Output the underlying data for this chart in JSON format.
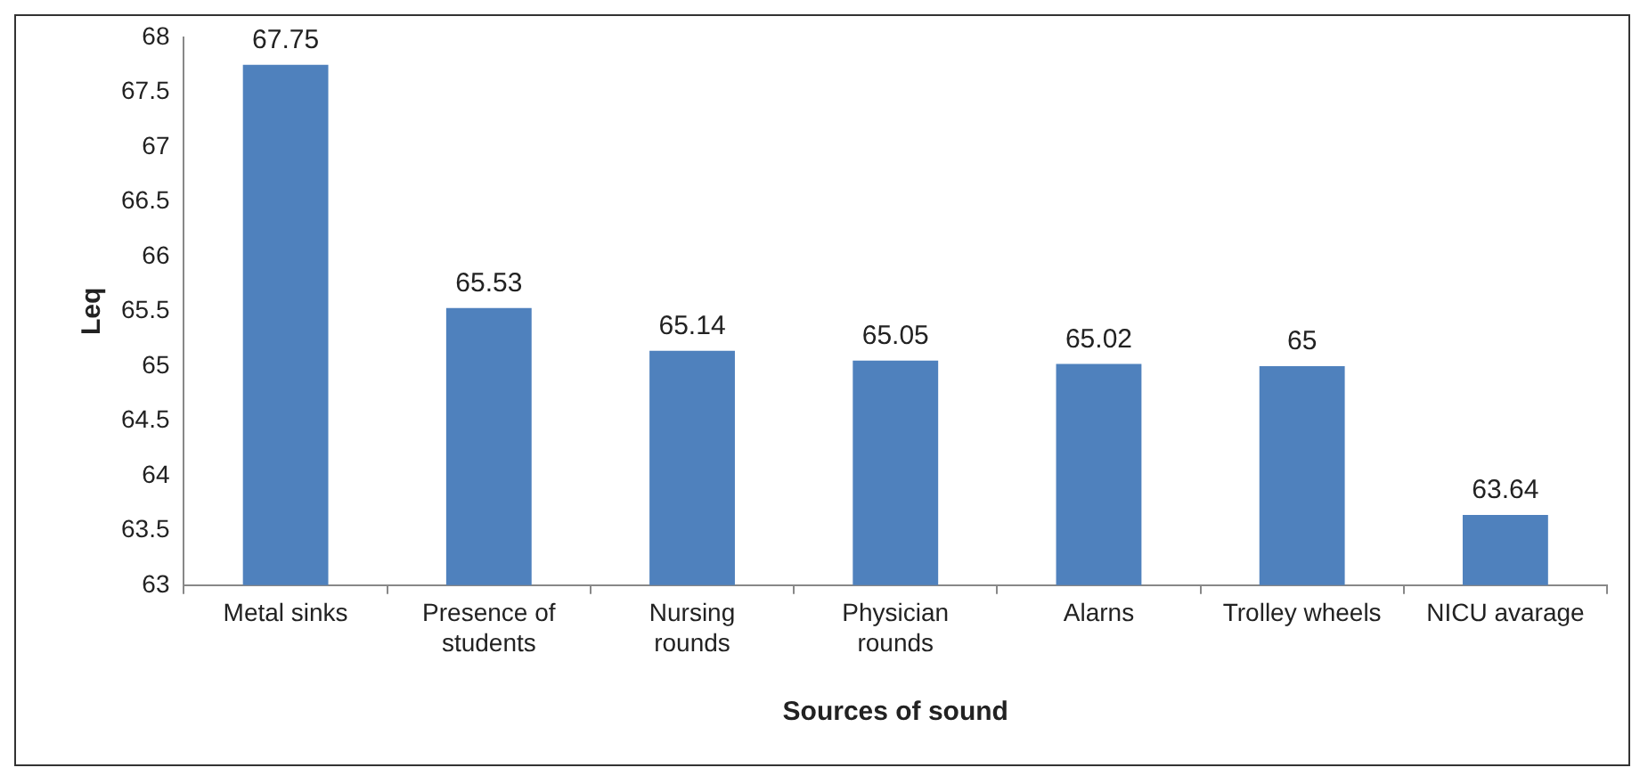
{
  "chart_data": {
    "type": "bar",
    "xlabel": "Sources of sound",
    "ylabel": "Leq",
    "categories": [
      "Metal sinks",
      "Presence of students",
      "Nursing rounds",
      "Physician rounds",
      "Alarns",
      "Trolley wheels",
      "NICU avarage"
    ],
    "values": [
      67.75,
      65.53,
      65.14,
      65.05,
      65.02,
      65,
      63.64
    ],
    "color": "#4f81bd",
    "ylim": [
      63,
      68
    ],
    "yticks": [
      63,
      63.5,
      64,
      64.5,
      65,
      65.5,
      66,
      66.5,
      67,
      67.5,
      68
    ],
    "data_labels": true,
    "grid": false,
    "legend": false
  }
}
